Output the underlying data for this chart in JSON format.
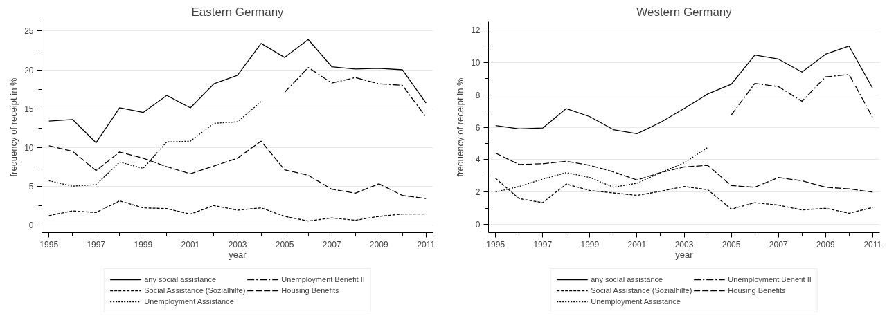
{
  "chart_data": [
    {
      "type": "line",
      "title": "Eastern Germany",
      "xlabel": "year",
      "ylabel": "frequency of receipt in %",
      "grid": "y",
      "legend": "bottom",
      "x": [
        1995,
        1996,
        1997,
        1998,
        1999,
        2000,
        2001,
        2002,
        2003,
        2004,
        2005,
        2006,
        2007,
        2008,
        2009,
        2010,
        2011
      ],
      "xlim": [
        1994.7,
        2011.3
      ],
      "ylim": [
        -1.0,
        26.2
      ],
      "xticks": [
        1995,
        {
          "value": 1996,
          "label": null
        },
        1997,
        {
          "value": 1998,
          "label": null
        },
        1999,
        {
          "value": 2000,
          "label": null
        },
        2001,
        {
          "value": 2002,
          "label": null
        },
        2003,
        {
          "value": 2004,
          "label": null
        },
        2005,
        {
          "value": 2006,
          "label": null
        },
        2007,
        {
          "value": 2008,
          "label": null
        },
        2009,
        {
          "value": 2010,
          "label": null
        },
        2011
      ],
      "yticks": [
        0,
        {
          "value": 2.5,
          "label": null
        },
        5,
        {
          "value": 7.5,
          "label": null
        },
        10,
        {
          "value": 12.5,
          "label": null
        },
        15,
        {
          "value": 17.5,
          "label": null
        },
        20,
        {
          "value": 22.5,
          "label": null
        },
        25
      ],
      "series": [
        {
          "name": "any social assistance",
          "color": "#000000",
          "line_style": "solid",
          "values": [
            13.4,
            13.6,
            10.6,
            15.1,
            14.5,
            16.7,
            15.1,
            18.2,
            19.3,
            23.4,
            21.6,
            23.9,
            20.4,
            20.1,
            20.2,
            20.0,
            15.7
          ]
        },
        {
          "name": "Social Assistance (Sozialhilfe)",
          "color": "#000000",
          "line_style": "dashed",
          "values": [
            1.2,
            1.8,
            1.6,
            3.1,
            2.2,
            2.1,
            1.4,
            2.5,
            1.9,
            2.2,
            1.1,
            0.5,
            0.9,
            0.6,
            1.1,
            1.4,
            1.4
          ]
        },
        {
          "name": "Unemployment Assistance",
          "color": "#000000",
          "line_style": "dotted",
          "values": [
            5.7,
            5.0,
            5.2,
            8.1,
            7.3,
            10.7,
            10.8,
            13.1,
            13.3,
            15.9,
            null,
            null,
            null,
            null,
            null,
            null,
            null
          ]
        },
        {
          "name": "Unemployment Benefit II",
          "color": "#000000",
          "line_style": "dashdot",
          "values": [
            null,
            null,
            null,
            null,
            null,
            null,
            null,
            null,
            null,
            null,
            17.1,
            20.3,
            18.3,
            19.0,
            18.2,
            18.0,
            13.9
          ]
        },
        {
          "name": "Housing Benefits",
          "color": "#000000",
          "line_style": "longdash",
          "values": [
            10.2,
            9.5,
            7.0,
            9.4,
            8.6,
            7.5,
            6.6,
            7.6,
            8.6,
            10.8,
            7.1,
            6.4,
            4.6,
            4.1,
            5.3,
            3.8,
            3.4
          ]
        }
      ]
    },
    {
      "type": "line",
      "title": "Western Germany",
      "xlabel": "year",
      "ylabel": "frequency of receipt in %",
      "grid": "y",
      "legend": "bottom",
      "x": [
        1995,
        1996,
        1997,
        1998,
        1999,
        2000,
        2001,
        2002,
        2003,
        2004,
        2005,
        2006,
        2007,
        2008,
        2009,
        2010,
        2011
      ],
      "xlim": [
        1994.7,
        2011.3
      ],
      "ylim": [
        -0.5,
        12.5
      ],
      "xticks": [
        1995,
        {
          "value": 1996,
          "label": null
        },
        1997,
        {
          "value": 1998,
          "label": null
        },
        1999,
        {
          "value": 2000,
          "label": null
        },
        2001,
        {
          "value": 2002,
          "label": null
        },
        2003,
        {
          "value": 2004,
          "label": null
        },
        2005,
        {
          "value": 2006,
          "label": null
        },
        2007,
        {
          "value": 2008,
          "label": null
        },
        2009,
        {
          "value": 2010,
          "label": null
        },
        2011
      ],
      "yticks": [
        0,
        {
          "value": 1,
          "label": null
        },
        2,
        {
          "value": 3,
          "label": null
        },
        4,
        {
          "value": 5,
          "label": null
        },
        6,
        {
          "value": 7,
          "label": null
        },
        8,
        {
          "value": 9,
          "label": null
        },
        10,
        {
          "value": 11,
          "label": null
        },
        12
      ],
      "series": [
        {
          "name": "any social assistance",
          "color": "#000000",
          "line_style": "solid",
          "values": [
            6.1,
            5.9,
            5.95,
            7.15,
            6.65,
            5.85,
            5.6,
            6.3,
            7.15,
            8.05,
            8.65,
            10.45,
            10.2,
            9.4,
            10.5,
            11.0,
            8.4
          ]
        },
        {
          "name": "Social Assistance (Sozialhilfe)",
          "color": "#000000",
          "line_style": "dashed",
          "values": [
            2.85,
            1.6,
            1.35,
            2.5,
            2.1,
            1.95,
            1.8,
            2.05,
            2.35,
            2.15,
            0.95,
            1.35,
            1.2,
            0.9,
            1.0,
            0.7,
            1.05
          ]
        },
        {
          "name": "Unemployment Assistance",
          "color": "#000000",
          "line_style": "dotted",
          "values": [
            2.0,
            2.35,
            2.8,
            3.2,
            2.9,
            2.3,
            2.55,
            3.2,
            3.8,
            4.75,
            null,
            null,
            null,
            null,
            null,
            null,
            null
          ]
        },
        {
          "name": "Unemployment Benefit II",
          "color": "#000000",
          "line_style": "dashdot",
          "values": [
            null,
            null,
            null,
            null,
            null,
            null,
            null,
            null,
            null,
            null,
            6.75,
            8.7,
            8.5,
            7.6,
            9.1,
            9.25,
            6.6
          ]
        },
        {
          "name": "Housing Benefits",
          "color": "#000000",
          "line_style": "longdash",
          "values": [
            4.4,
            3.7,
            3.75,
            3.9,
            3.65,
            3.25,
            2.75,
            3.2,
            3.55,
            3.65,
            2.4,
            2.3,
            2.9,
            2.7,
            2.3,
            2.2,
            2.0
          ]
        }
      ]
    }
  ]
}
